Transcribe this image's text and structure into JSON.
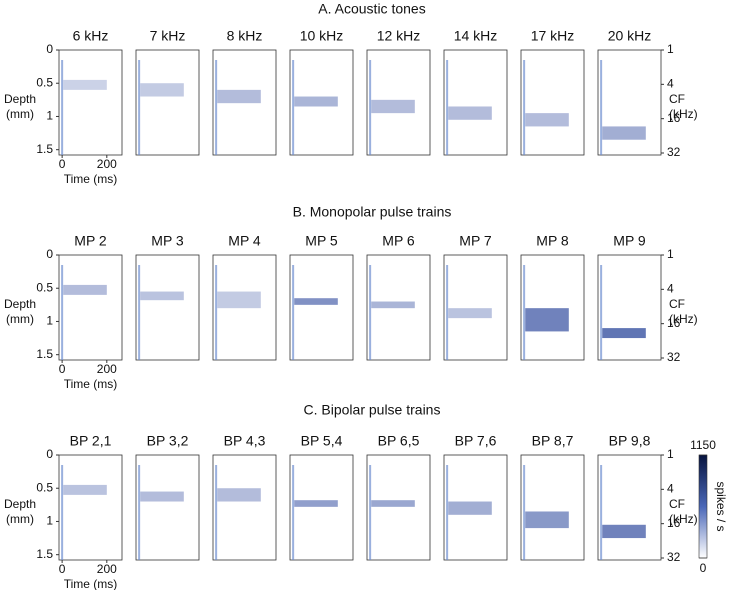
{
  "chart_data": [
    {
      "type": "heatmap",
      "title": "A. Acoustic tones",
      "panels": [
        {
          "title": "6 kHz",
          "depth": [
            0.45,
            0.6
          ],
          "time": [
            5,
            200
          ],
          "intensity": 150
        },
        {
          "title": "7 kHz",
          "depth": [
            0.5,
            0.7
          ],
          "time": [
            5,
            200
          ],
          "intensity": 200
        },
        {
          "title": "8 kHz",
          "depth": [
            0.6,
            0.8
          ],
          "time": [
            5,
            200
          ],
          "intensity": 300
        },
        {
          "title": "10 kHz",
          "depth": [
            0.7,
            0.85
          ],
          "time": [
            5,
            200
          ],
          "intensity": 350
        },
        {
          "title": "12 kHz",
          "depth": [
            0.75,
            0.95
          ],
          "time": [
            5,
            200
          ],
          "intensity": 300
        },
        {
          "title": "14 kHz",
          "depth": [
            0.85,
            1.05
          ],
          "time": [
            5,
            200
          ],
          "intensity": 300
        },
        {
          "title": "17 kHz",
          "depth": [
            0.95,
            1.15
          ],
          "time": [
            5,
            200
          ],
          "intensity": 300
        },
        {
          "title": "20 kHz",
          "depth": [
            1.15,
            1.35
          ],
          "time": [
            5,
            200
          ],
          "intensity": 400
        }
      ],
      "xlim": [
        -14,
        268
      ],
      "xticks": [
        0,
        200
      ],
      "xlabel": "Time (ms)",
      "ylim": [
        0,
        1.58
      ],
      "yticks": [
        0,
        0.5,
        1,
        1.5
      ],
      "ylabel": [
        "Depth",
        "(mm)"
      ],
      "y2lim": [
        1,
        32
      ],
      "y2ticks": [
        1,
        4,
        16,
        32
      ],
      "y2label": [
        "CF",
        "(kHz)"
      ]
    },
    {
      "type": "heatmap",
      "title": "B. Monopolar pulse trains",
      "panels": [
        {
          "title": "MP 2",
          "depth": [
            0.45,
            0.6
          ],
          "time": [
            5,
            200
          ],
          "intensity": 300
        },
        {
          "title": "MP 3",
          "depth": [
            0.55,
            0.68
          ],
          "time": [
            5,
            200
          ],
          "intensity": 250
        },
        {
          "title": "MP 4",
          "depth": [
            0.55,
            0.8
          ],
          "time": [
            5,
            200
          ],
          "intensity": 200
        },
        {
          "title": "MP 5",
          "depth": [
            0.65,
            0.75
          ],
          "time": [
            5,
            200
          ],
          "intensity": 600
        },
        {
          "title": "MP 6",
          "depth": [
            0.7,
            0.8
          ],
          "time": [
            5,
            200
          ],
          "intensity": 350
        },
        {
          "title": "MP 7",
          "depth": [
            0.8,
            0.95
          ],
          "time": [
            5,
            200
          ],
          "intensity": 250
        },
        {
          "title": "MP 8",
          "depth": [
            0.8,
            1.15
          ],
          "time": [
            5,
            200
          ],
          "intensity": 700
        },
        {
          "title": "MP 9",
          "depth": [
            1.1,
            1.25
          ],
          "time": [
            5,
            200
          ],
          "intensity": 800
        }
      ],
      "xlim": [
        -14,
        268
      ],
      "xticks": [
        0,
        200
      ],
      "xlabel": "Time (ms)",
      "ylim": [
        0,
        1.58
      ],
      "yticks": [
        0,
        0.5,
        1,
        1.5
      ],
      "ylabel": [
        "Depth",
        "(mm)"
      ],
      "y2lim": [
        1,
        32
      ],
      "y2ticks": [
        1,
        4,
        16,
        32
      ],
      "y2label": [
        "CF",
        "(kHz)"
      ]
    },
    {
      "type": "heatmap",
      "title": "C. Bipolar pulse trains",
      "panels": [
        {
          "title": "BP 2,1",
          "depth": [
            0.45,
            0.6
          ],
          "time": [
            5,
            200
          ],
          "intensity": 250
        },
        {
          "title": "BP 3,2",
          "depth": [
            0.55,
            0.7
          ],
          "time": [
            5,
            200
          ],
          "intensity": 300
        },
        {
          "title": "BP 4,3",
          "depth": [
            0.5,
            0.7
          ],
          "time": [
            5,
            200
          ],
          "intensity": 300
        },
        {
          "title": "BP 5,4",
          "depth": [
            0.68,
            0.78
          ],
          "time": [
            5,
            200
          ],
          "intensity": 500
        },
        {
          "title": "BP 6,5",
          "depth": [
            0.68,
            0.78
          ],
          "time": [
            5,
            200
          ],
          "intensity": 450
        },
        {
          "title": "BP 7,6",
          "depth": [
            0.7,
            0.9
          ],
          "time": [
            5,
            200
          ],
          "intensity": 400
        },
        {
          "title": "BP 8,7",
          "depth": [
            0.85,
            1.1
          ],
          "time": [
            5,
            200
          ],
          "intensity": 550
        },
        {
          "title": "BP 9,8",
          "depth": [
            1.05,
            1.25
          ],
          "time": [
            5,
            200
          ],
          "intensity": 700
        }
      ],
      "xlim": [
        -14,
        268
      ],
      "xticks": [
        0,
        200
      ],
      "xlabel": "Time (ms)",
      "ylim": [
        0,
        1.58
      ],
      "yticks": [
        0,
        0.5,
        1,
        1.5
      ],
      "ylabel": [
        "Depth",
        "(mm)"
      ],
      "y2lim": [
        1,
        32
      ],
      "y2ticks": [
        1,
        4,
        16,
        32
      ],
      "y2label": [
        "CF",
        "(kHz)"
      ],
      "colorbar": {
        "label": "spikes / s",
        "clim": [
          0,
          1150
        ],
        "ticks": [
          0,
          1150
        ]
      }
    }
  ]
}
